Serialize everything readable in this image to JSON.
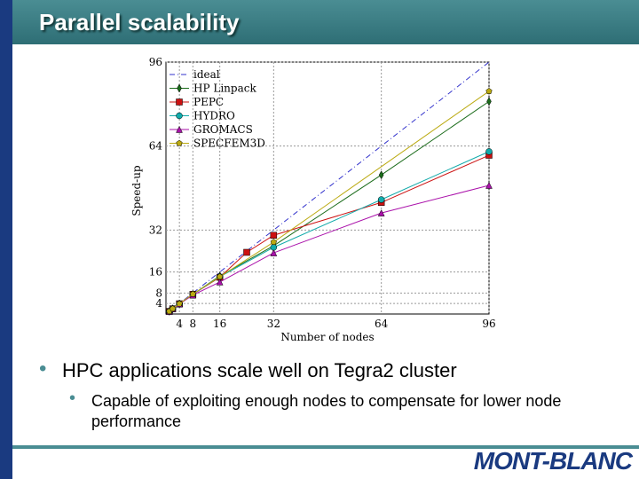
{
  "slide": {
    "title": "Parallel scalability",
    "bullets": [
      "HPC applications scale well on Tegra2 cluster"
    ],
    "sub_bullets": [
      "Capable of exploiting enough nodes to compensate for lower node performance"
    ],
    "logo": "MONT-BLANC"
  },
  "chart_data": {
    "type": "line",
    "x_label": "Number of nodes",
    "y_label": "Speed-up",
    "xlim": [
      0,
      96
    ],
    "ylim": [
      0,
      96
    ],
    "xticks": [
      4,
      8,
      16,
      32,
      64,
      96
    ],
    "yticks": [
      4,
      8,
      16,
      32,
      64,
      96
    ],
    "grid": true,
    "legend": "upper left",
    "series": [
      {
        "name": "ideal",
        "color": "#3333cc",
        "style": "dashdot",
        "marker": "none",
        "x": [
          0,
          96
        ],
        "values": [
          0,
          96
        ]
      },
      {
        "name": "HP Linpack",
        "color": "#1a6b1a",
        "marker": "diamond",
        "x": [
          1,
          2,
          4,
          8,
          16,
          32,
          64,
          96
        ],
        "values": [
          1,
          2,
          3.9,
          7.5,
          14.5,
          26,
          53,
          81
        ]
      },
      {
        "name": "PEPC",
        "color": "#cc1111",
        "marker": "square",
        "x": [
          1,
          2,
          4,
          8,
          16,
          24,
          32,
          64,
          96
        ],
        "values": [
          1,
          2,
          3.9,
          7.5,
          14,
          23.5,
          30,
          42.5,
          60.5
        ]
      },
      {
        "name": "HYDRO",
        "color": "#11aaaa",
        "marker": "circle",
        "x": [
          1,
          2,
          4,
          8,
          16,
          32,
          64,
          96
        ],
        "values": [
          1,
          2,
          3.9,
          7.5,
          14.2,
          25.4,
          43.6,
          61.9
        ]
      },
      {
        "name": "GROMACS",
        "color": "#aa11aa",
        "marker": "triangle",
        "x": [
          1,
          2,
          4,
          8,
          16,
          32,
          64,
          96
        ],
        "values": [
          1,
          2,
          3.8,
          7.2,
          12.2,
          23.3,
          38.5,
          49
        ]
      },
      {
        "name": "SPECFEM3D",
        "color": "#bbaa11",
        "marker": "pentagon",
        "x": [
          1,
          2,
          4,
          8,
          16,
          32,
          96
        ],
        "values": [
          1,
          2,
          3.9,
          7.6,
          14.2,
          27.4,
          84.9
        ]
      }
    ]
  }
}
